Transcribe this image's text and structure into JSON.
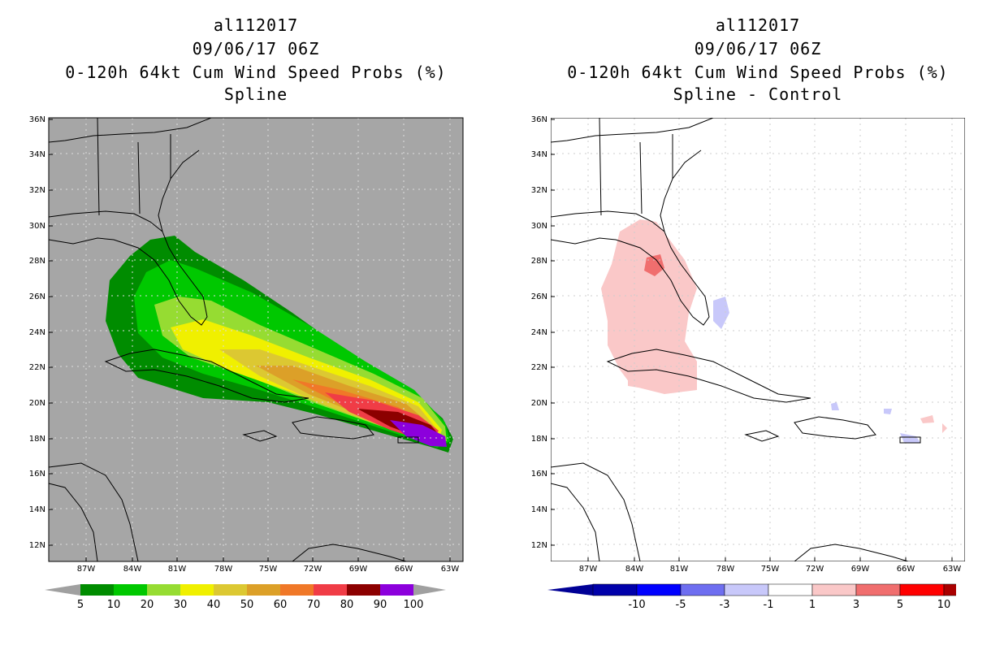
{
  "left": {
    "title_line1": "al112017",
    "title_line2": "09/06/17 06Z",
    "title_line3": "0-120h 64kt Cum Wind Speed Probs (%)",
    "title_line4": "Spline",
    "colorbar": {
      "labels": [
        "5",
        "10",
        "20",
        "30",
        "40",
        "50",
        "60",
        "70",
        "80",
        "90",
        "100"
      ],
      "colors": [
        "#008c00",
        "#00c800",
        "#96dc32",
        "#f0f000",
        "#dcc832",
        "#dca028",
        "#f07828",
        "#f03c46",
        "#8c0000",
        "#8c00dc"
      ],
      "end_color": "#a0a0a0"
    },
    "background": "#a6a6a6"
  },
  "right": {
    "title_line1": "al112017",
    "title_line2": "09/06/17 06Z",
    "title_line3": "0-120h 64kt Cum Wind Speed Probs (%)",
    "title_line4": "Spline - Control",
    "colorbar": {
      "labels": [
        "-10",
        "-5",
        "-3",
        "-1",
        "1",
        "3",
        "5",
        "10"
      ],
      "colors": [
        "#0000aa",
        "#0000ff",
        "#6e6ef0",
        "#c8c8fa",
        "#ffffff",
        "#fac8c8",
        "#f06e6e",
        "#ff0000",
        "#aa0000"
      ],
      "left_end": "#000096",
      "right_end": "#8c0000"
    },
    "background": "#ffffff"
  },
  "axes": {
    "lat_labels": [
      "36N",
      "34N",
      "32N",
      "30N",
      "28N",
      "26N",
      "24N",
      "22N",
      "20N",
      "18N",
      "16N",
      "14N",
      "12N"
    ],
    "lon_labels": [
      "87W",
      "84W",
      "81W",
      "78W",
      "75W",
      "72W",
      "69W",
      "66W",
      "63W"
    ]
  }
}
